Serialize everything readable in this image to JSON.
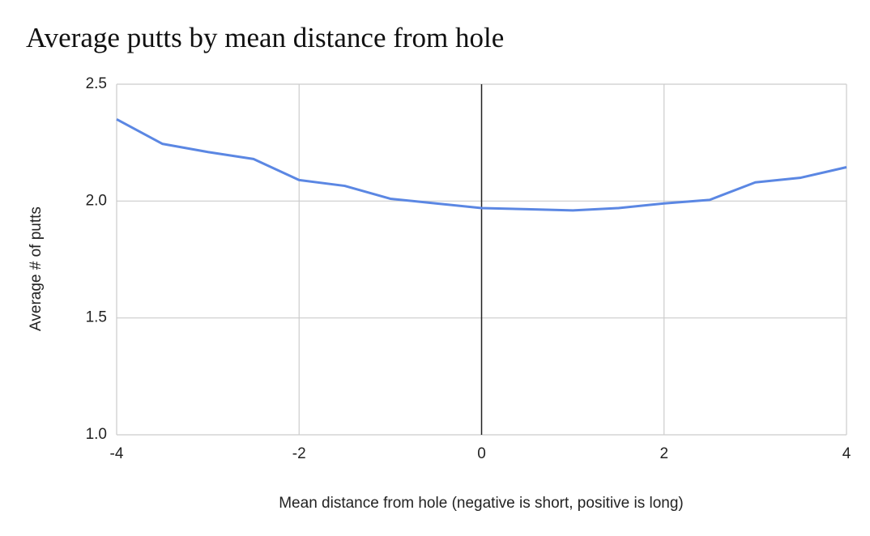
{
  "chart_data": {
    "type": "line",
    "title": "Average putts by mean distance from hole",
    "x_label": "Mean distance from hole (negative is short, positive is long)",
    "y_label": "Average # of putts",
    "x": [
      -4,
      -3.5,
      -3,
      -2.5,
      -2,
      -1.5,
      -1,
      -0.5,
      0,
      0.5,
      1,
      1.5,
      2,
      2.5,
      3,
      3.5,
      4
    ],
    "series": [
      {
        "name": "Average # of putts",
        "color": "#5b87e3",
        "values": [
          2.35,
          2.245,
          2.21,
          2.18,
          2.09,
          2.065,
          2.01,
          1.99,
          1.97,
          1.965,
          1.96,
          1.97,
          1.99,
          2.005,
          2.08,
          2.1,
          2.145
        ]
      }
    ],
    "xlim": [
      -4,
      4
    ],
    "xticks": [
      -4,
      -2,
      0,
      2,
      4
    ],
    "ylim": [
      1,
      2.5
    ],
    "yticks": [
      {
        "value": 1,
        "label": "1.0"
      },
      {
        "value": 1.5,
        "label": "1.5"
      },
      {
        "value": 2,
        "label": "2.0"
      },
      {
        "value": 2.5,
        "label": "2.5"
      }
    ],
    "grid": true
  }
}
